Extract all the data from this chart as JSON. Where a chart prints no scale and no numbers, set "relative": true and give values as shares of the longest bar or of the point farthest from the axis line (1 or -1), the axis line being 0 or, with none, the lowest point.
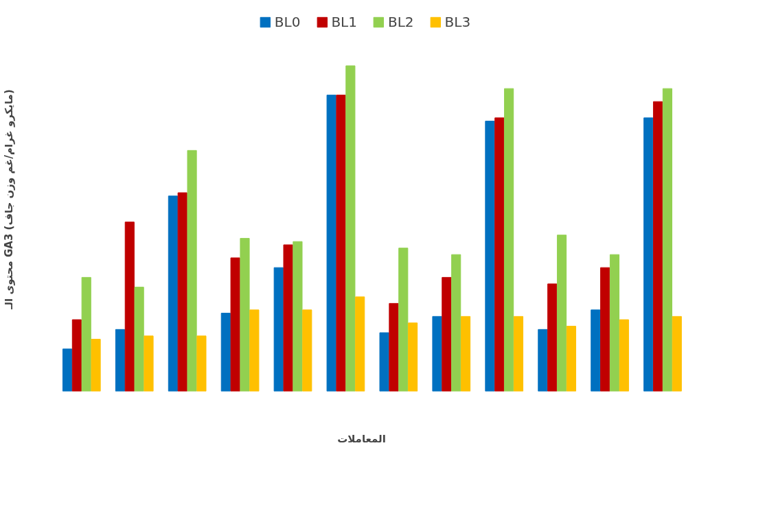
{
  "chart_data": {
    "type": "bar",
    "relative": true,
    "xlabel": "المعاملات",
    "ylabel": "محتوى الـ GA3 (مايكرو غرام/غم وزن جاف)",
    "categories": [
      null,
      null,
      null,
      null,
      null,
      null,
      null,
      null,
      null,
      null,
      null,
      null
    ],
    "series": [
      {
        "name": "BL0",
        "color": "#0070c0",
        "values": [
          0.13,
          0.19,
          0.6,
          0.24,
          0.38,
          0.91,
          0.18,
          0.23,
          0.83,
          0.19,
          0.25,
          0.84
        ]
      },
      {
        "name": "BL1",
        "color": "#c00000",
        "values": [
          0.22,
          0.52,
          0.61,
          0.41,
          0.45,
          0.91,
          0.27,
          0.35,
          0.84,
          0.33,
          0.38,
          0.89
        ]
      },
      {
        "name": "BL2",
        "color": "#92d050",
        "values": [
          0.35,
          0.32,
          0.74,
          0.47,
          0.46,
          1,
          0.44,
          0.42,
          0.93,
          0.48,
          0.42,
          0.93
        ]
      },
      {
        "name": "BL3",
        "color": "#ffc000",
        "values": [
          0.16,
          0.17,
          0.17,
          0.25,
          0.25,
          0.29,
          0.21,
          0.23,
          0.23,
          0.2,
          0.22,
          0.23
        ]
      }
    ],
    "legend": "top"
  }
}
